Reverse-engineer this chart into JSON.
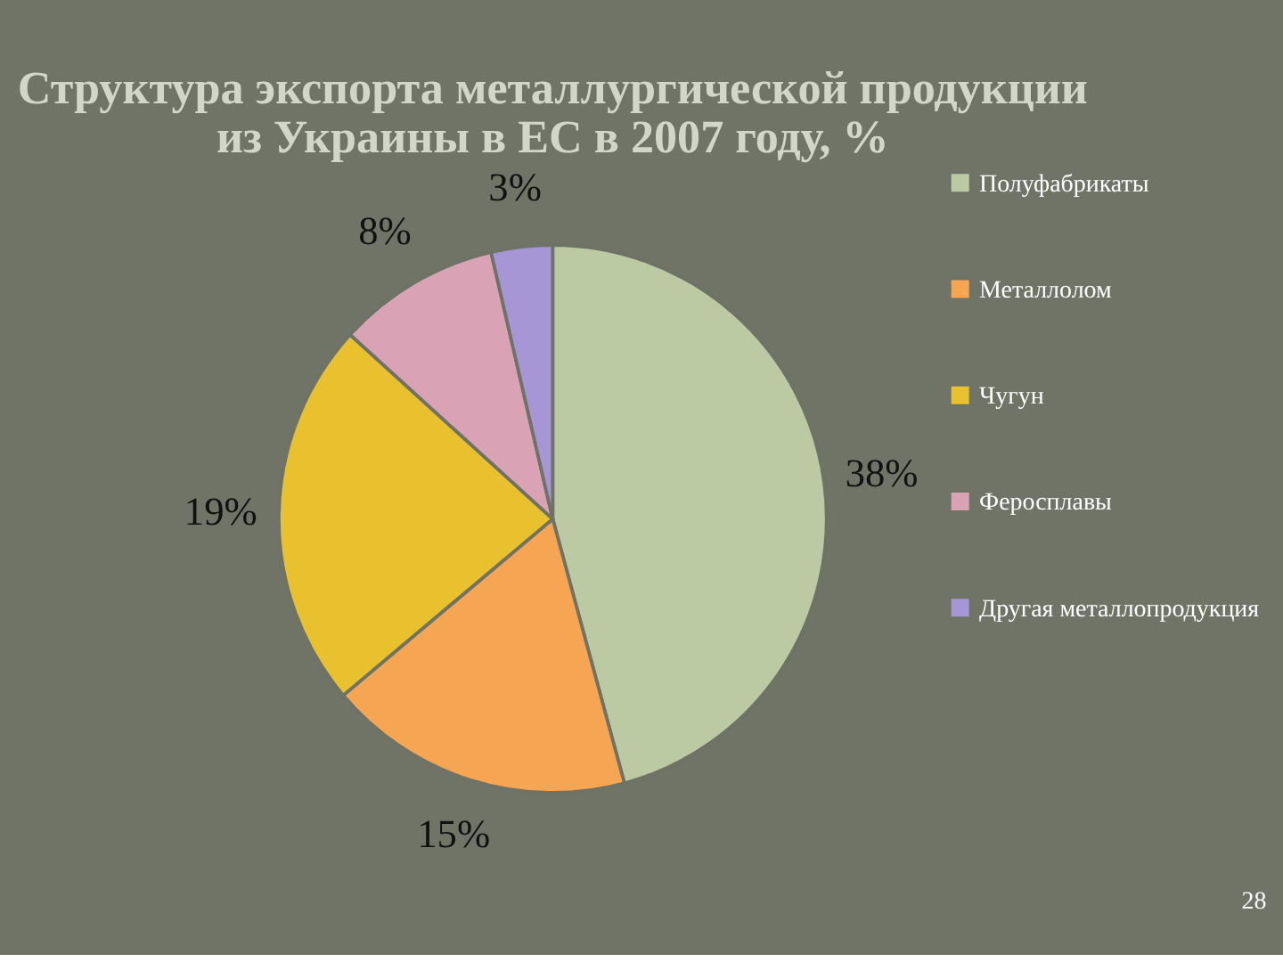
{
  "chart_data": {
    "type": "pie",
    "title": "Структура экспорта металлургической продукции из Украины в ЕС в 2007 году, %",
    "categories": [
      "Полуфабрикаты",
      "Металлолом",
      "Чугун",
      "Феросплавы",
      "Другая металлопродукция"
    ],
    "values": [
      38,
      15,
      19,
      8,
      3
    ],
    "value_labels": [
      "38%",
      "15%",
      "19%",
      "8%",
      "3%"
    ],
    "colors": [
      "#bccaa3",
      "#f6a552",
      "#e9c02e",
      "#d9a3b5",
      "#a696d6"
    ],
    "legend": "right",
    "annotations": [
      "28"
    ]
  }
}
